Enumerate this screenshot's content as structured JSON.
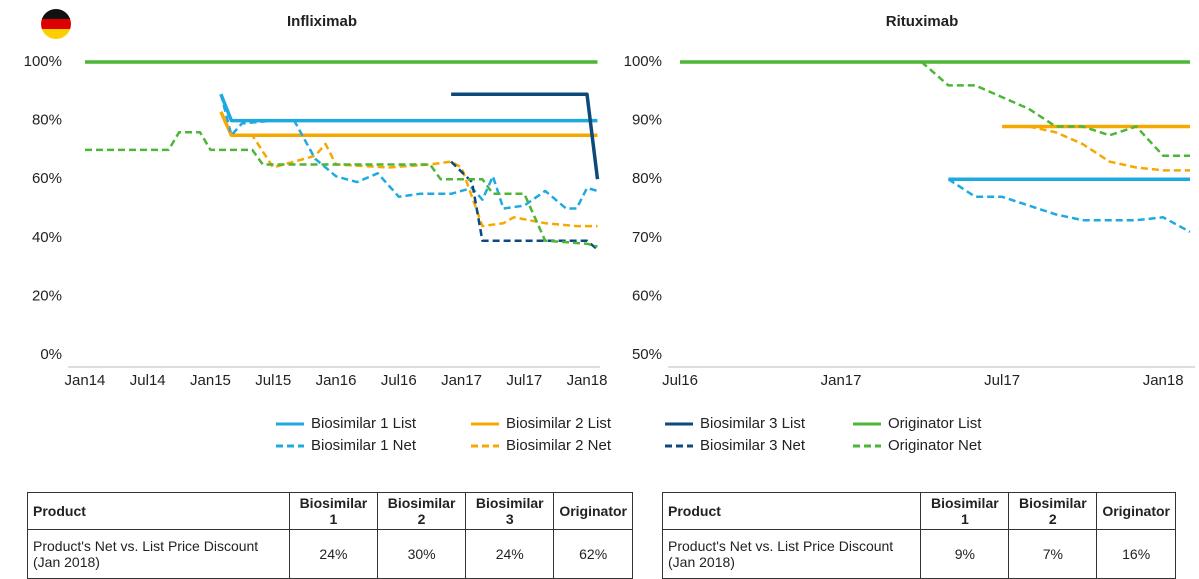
{
  "chart_data": [
    {
      "type": "line",
      "title": "Infliximab",
      "xlim": [
        "2013-12",
        "2018-02"
      ],
      "xticks": [
        {
          "value": "2014-01",
          "label": "Jan14"
        },
        {
          "value": "2014-07",
          "label": "Jul14"
        },
        {
          "value": "2015-01",
          "label": "Jan15"
        },
        {
          "value": "2015-07",
          "label": "Jul15"
        },
        {
          "value": "2016-01",
          "label": "Jan16"
        },
        {
          "value": "2016-07",
          "label": "Jul16"
        },
        {
          "value": "2017-01",
          "label": "Jan17"
        },
        {
          "value": "2017-07",
          "label": "Jul17"
        },
        {
          "value": "2018-01",
          "label": "Jan18"
        }
      ],
      "ylim": [
        0,
        100
      ],
      "yticks": [
        {
          "value": 0,
          "label": "0%"
        },
        {
          "value": 20,
          "label": "20%"
        },
        {
          "value": 40,
          "label": "40%"
        },
        {
          "value": 60,
          "label": "60%"
        },
        {
          "value": 80,
          "label": "80%"
        },
        {
          "value": 100,
          "label": "100%"
        }
      ],
      "series": [
        {
          "name": "Biosimilar 1 List",
          "color": "#1fa9e1",
          "style": "solid",
          "x": [
            "2015-02",
            "2015-03",
            "2018-02"
          ],
          "values": [
            89,
            80,
            80
          ]
        },
        {
          "name": "Biosimilar 1 Net",
          "color": "#1fa9e1",
          "style": "dashed",
          "x": [
            "2015-02",
            "2015-03",
            "2015-04",
            "2015-07",
            "2015-09",
            "2015-11",
            "2016-01",
            "2016-03",
            "2016-05",
            "2016-07",
            "2016-09",
            "2016-12",
            "2017-02",
            "2017-03",
            "2017-04",
            "2017-05",
            "2017-07",
            "2017-09",
            "2017-11",
            "2017-12",
            "2018-01",
            "2018-02"
          ],
          "values": [
            89,
            75,
            79,
            80,
            80,
            67,
            61,
            59,
            62,
            54,
            55,
            55,
            57,
            53,
            61,
            50,
            51,
            56,
            50,
            50,
            57,
            56
          ]
        },
        {
          "name": "Biosimilar 2 List",
          "color": "#f7a800",
          "style": "solid",
          "x": [
            "2015-02",
            "2015-03",
            "2018-02"
          ],
          "values": [
            83,
            75,
            75
          ]
        },
        {
          "name": "Biosimilar 2 Net",
          "color": "#f7a800",
          "style": "dashed",
          "x": [
            "2015-02",
            "2015-03",
            "2015-05",
            "2015-07",
            "2015-09",
            "2015-11",
            "2015-12",
            "2016-01",
            "2016-06",
            "2016-10",
            "2016-12",
            "2017-01",
            "2017-03",
            "2017-05",
            "2017-06",
            "2017-09",
            "2017-12",
            "2018-02"
          ],
          "values": [
            83,
            75,
            75,
            64,
            66,
            68,
            72,
            65,
            64,
            65,
            66,
            64,
            44,
            45,
            47,
            45,
            44,
            44
          ]
        },
        {
          "name": "Biosimilar 3 List",
          "color": "#0d4a7b",
          "style": "solid",
          "x": [
            "2016-12",
            "2018-01",
            "2018-02"
          ],
          "values": [
            89,
            89,
            60
          ]
        },
        {
          "name": "Biosimilar 3 Net",
          "color": "#0d4a7b",
          "style": "dashed",
          "x": [
            "2016-12",
            "2017-02",
            "2017-03",
            "2018-01",
            "2018-02"
          ],
          "values": [
            66,
            59,
            39,
            39,
            36
          ]
        },
        {
          "name": "Originator List",
          "color": "#4cb636",
          "style": "solid",
          "x": [
            "2014-01",
            "2018-02"
          ],
          "values": [
            100,
            100
          ]
        },
        {
          "name": "Originator Net",
          "color": "#4cb636",
          "style": "dashed",
          "x": [
            "2014-01",
            "2014-09",
            "2014-10",
            "2014-12",
            "2015-01",
            "2015-05",
            "2015-06",
            "2016-10",
            "2016-11",
            "2017-03",
            "2017-04",
            "2017-07",
            "2017-09",
            "2018-01",
            "2018-02"
          ],
          "values": [
            70,
            70,
            76,
            76,
            70,
            70,
            65,
            65,
            60,
            60,
            55,
            55,
            39,
            38,
            37
          ]
        }
      ]
    },
    {
      "type": "line",
      "title": "Rituximab",
      "xlim": [
        "2016-07",
        "2018-02"
      ],
      "xticks": [
        {
          "value": "2016-07",
          "label": "Jul16"
        },
        {
          "value": "2017-01",
          "label": "Jan17"
        },
        {
          "value": "2017-07",
          "label": "Jul17"
        },
        {
          "value": "2018-01",
          "label": "Jan18"
        }
      ],
      "ylim": [
        50,
        100
      ],
      "yticks": [
        {
          "value": 50,
          "label": "50%"
        },
        {
          "value": 60,
          "label": "60%"
        },
        {
          "value": 70,
          "label": "70%"
        },
        {
          "value": 80,
          "label": "80%"
        },
        {
          "value": 90,
          "label": "90%"
        },
        {
          "value": 100,
          "label": "100%"
        }
      ],
      "series": [
        {
          "name": "Biosimilar 1 List",
          "color": "#1fa9e1",
          "style": "solid",
          "x": [
            "2017-05",
            "2018-02"
          ],
          "values": [
            80,
            80
          ]
        },
        {
          "name": "Biosimilar 1 Net",
          "color": "#1fa9e1",
          "style": "dashed",
          "x": [
            "2017-05",
            "2017-06",
            "2017-07",
            "2017-09",
            "2017-10",
            "2017-12",
            "2018-01",
            "2018-02"
          ],
          "values": [
            80,
            77,
            77,
            74,
            73,
            73,
            73.5,
            71
          ]
        },
        {
          "name": "Biosimilar 2 List",
          "color": "#f7a800",
          "style": "solid",
          "x": [
            "2017-07",
            "2018-02"
          ],
          "values": [
            89,
            89
          ]
        },
        {
          "name": "Biosimilar 2 Net",
          "color": "#f7a800",
          "style": "dashed",
          "x": [
            "2017-08",
            "2017-09",
            "2017-10",
            "2017-11",
            "2017-12",
            "2018-01",
            "2018-02"
          ],
          "values": [
            89,
            88,
            86,
            83,
            82,
            81.5,
            81.5
          ]
        },
        {
          "name": "Originator List",
          "color": "#4cb636",
          "style": "solid",
          "x": [
            "2016-07",
            "2018-02"
          ],
          "values": [
            100,
            100
          ]
        },
        {
          "name": "Originator Net",
          "color": "#4cb636",
          "style": "dashed",
          "x": [
            "2017-04",
            "2017-05",
            "2017-06",
            "2017-08",
            "2017-09",
            "2017-10",
            "2017-11",
            "2017-12",
            "2018-01",
            "2018-02"
          ],
          "values": [
            100,
            96,
            96,
            92,
            89,
            89,
            87.5,
            89,
            84,
            84
          ]
        }
      ]
    }
  ],
  "tables": [
    {
      "columns": [
        "Product",
        "Biosimilar 1",
        "Biosimilar 2",
        "Biosimilar 3",
        "Originator"
      ],
      "rows": [
        [
          "Product's Net vs. List Price Discount (Jan 2018)",
          "24%",
          "30%",
          "24%",
          "62%"
        ]
      ]
    },
    {
      "columns": [
        "Product",
        "Biosimilar 1",
        "Biosimilar 2",
        "Originator"
      ],
      "rows": [
        [
          "Product's Net vs. List Price Discount (Jan 2018)",
          "9%",
          "7%",
          "16%"
        ]
      ]
    }
  ]
}
